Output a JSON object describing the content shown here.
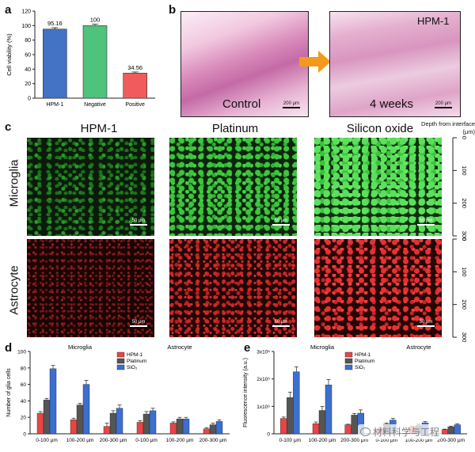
{
  "panels": {
    "a": "a",
    "b": "b",
    "c": "c",
    "d": "d",
    "e": "e"
  },
  "panel_b": {
    "control_label": "Control",
    "weeks_label": "4 weeks",
    "sample_label": "HPM-1",
    "scale_label": "200 μm",
    "arrow_color": "#f39a1e"
  },
  "panel_c": {
    "columns": [
      "HPM-1",
      "Platinum",
      "Silicon oxide"
    ],
    "rows": [
      "Microglia",
      "Astrocyte"
    ],
    "scale_label": "50 μm",
    "depth_title": "Depth from interface (μm)",
    "depth_ticks": [
      "0",
      "100",
      "200",
      "300"
    ]
  },
  "watermark": "材料科学与工程",
  "chart_data": [
    {
      "id": "a",
      "type": "bar",
      "ylabel": "Cell viability (%)",
      "categories": [
        "HPM-1",
        "Negative",
        "Positive"
      ],
      "values": [
        95.16,
        100,
        34.56
      ],
      "value_labels": [
        "95.16",
        "100",
        "34.56"
      ],
      "errors": [
        2,
        2,
        1.5
      ],
      "colors": [
        "#4472c4",
        "#4fc27b",
        "#f25b5b"
      ],
      "ylim": [
        0,
        120
      ],
      "yticks": [
        0,
        20,
        40,
        60,
        80,
        100,
        120
      ]
    },
    {
      "id": "d",
      "type": "bar",
      "ylabel": "Number of glia cells",
      "group_titles": [
        "Microglia",
        "Astrocyte"
      ],
      "categories": [
        "0-100  μm",
        "100-200  μm",
        "200-300  μm"
      ],
      "ylim": [
        0,
        100
      ],
      "yticks": [
        0,
        20,
        40,
        60,
        80,
        100
      ],
      "legend": "top-center",
      "series": [
        {
          "name": "HPM-1",
          "color": "#e84545",
          "microglia": [
            25,
            17,
            9
          ],
          "microglia_err": [
            2,
            2,
            4
          ],
          "astrocyte": [
            14,
            13,
            6
          ],
          "astrocyte_err": [
            2,
            1.5,
            1.5
          ]
        },
        {
          "name": "Platinum",
          "color": "#555555",
          "microglia": [
            41,
            35,
            25
          ],
          "microglia_err": [
            2,
            2,
            3
          ],
          "astrocyte": [
            24,
            18,
            11
          ],
          "astrocyte_err": [
            3,
            2,
            2
          ]
        },
        {
          "name": "SiO₂",
          "color": "#3b6fd1",
          "microglia": [
            79,
            60,
            31
          ],
          "microglia_err": [
            4,
            5,
            4
          ],
          "astrocyte": [
            28,
            18,
            15
          ],
          "astrocyte_err": [
            3,
            2,
            2
          ]
        }
      ]
    },
    {
      "id": "e",
      "type": "bar",
      "ylabel": "Fluorescence intensity (a.u.)",
      "group_titles": [
        "Microglia",
        "Astrocyte"
      ],
      "categories": [
        "0-100  μm",
        "100-200  μm",
        "200-300  μm"
      ],
      "ylim": [
        0,
        3000000
      ],
      "yticks": [
        0,
        1000000,
        2000000,
        3000000
      ],
      "ytick_labels": [
        "0",
        "1x10⁶",
        "2x10⁶",
        "3x10⁶"
      ],
      "legend": "top-center",
      "series": [
        {
          "name": "HPM-1",
          "color": "#e84545",
          "microglia": [
            560000,
            370000,
            330000
          ],
          "microglia_err": [
            50000,
            60000,
            20000
          ],
          "astrocyte": [
            200000,
            250000,
            150000
          ],
          "astrocyte_err": [
            30000,
            30000,
            20000
          ]
        },
        {
          "name": "Platinum",
          "color": "#555555",
          "microglia": [
            1320000,
            850000,
            680000
          ],
          "microglia_err": [
            200000,
            150000,
            60000
          ],
          "astrocyte": [
            350000,
            300000,
            250000
          ],
          "astrocyte_err": [
            40000,
            40000,
            30000
          ]
        },
        {
          "name": "SiO₂",
          "color": "#3b6fd1",
          "microglia": [
            2260000,
            1780000,
            750000
          ],
          "microglia_err": [
            180000,
            200000,
            120000
          ],
          "astrocyte": [
            500000,
            400000,
            330000
          ],
          "astrocyte_err": [
            60000,
            50000,
            40000
          ]
        }
      ]
    }
  ]
}
